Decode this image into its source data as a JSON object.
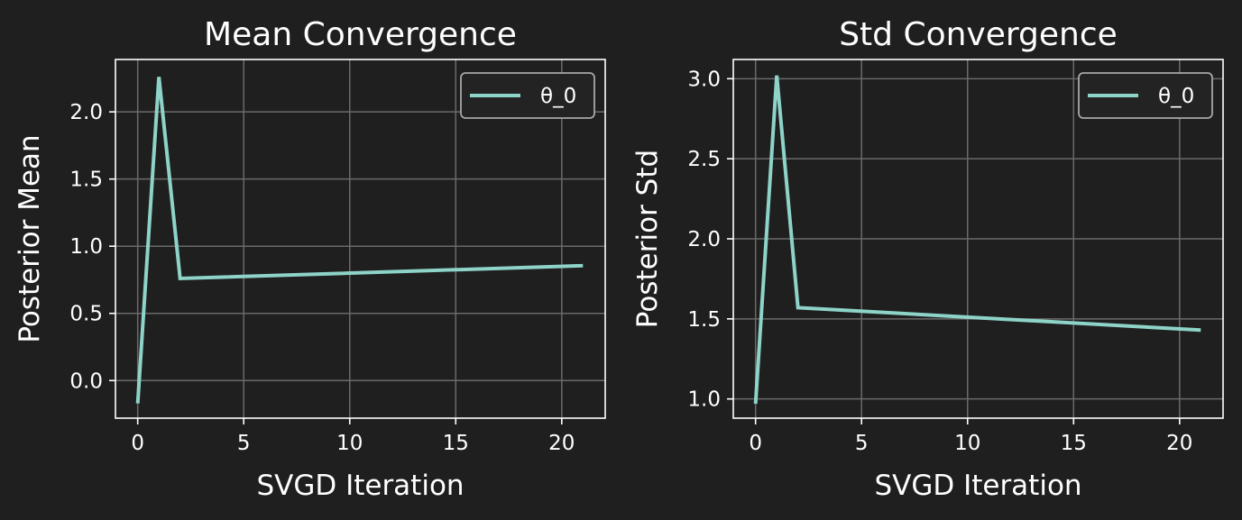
{
  "figure": {
    "background": "#1f1f1f",
    "axes_color": "#ffffff",
    "grid_color": "#6a6a6a",
    "line_color": "#8dd3c7"
  },
  "chart_data": [
    {
      "type": "line",
      "title": "Mean Convergence",
      "xlabel": "SVGD Iteration",
      "ylabel": "Posterior Mean",
      "xlim": [
        -1.05,
        22.05
      ],
      "ylim": [
        -0.28,
        2.39
      ],
      "xticks": [
        0,
        5,
        10,
        15,
        20
      ],
      "xtick_labels": [
        "0",
        "5",
        "10",
        "15",
        "20"
      ],
      "yticks": [
        0.0,
        0.5,
        1.0,
        1.5,
        2.0
      ],
      "ytick_labels": [
        "0.0",
        "0.5",
        "1.0",
        "1.5",
        "2.0"
      ],
      "grid": true,
      "legend": "top-right",
      "series": [
        {
          "name": "θ_0",
          "color": "#8dd3c7",
          "x": [
            0,
            1,
            2,
            21
          ],
          "y": [
            -0.17,
            2.26,
            0.76,
            0.855
          ]
        }
      ]
    },
    {
      "type": "line",
      "title": "Std Convergence",
      "xlabel": "SVGD Iteration",
      "ylabel": "Posterior Std",
      "xlim": [
        -1.05,
        22.05
      ],
      "ylim": [
        0.88,
        3.12
      ],
      "xticks": [
        0,
        5,
        10,
        15,
        20
      ],
      "xtick_labels": [
        "0",
        "5",
        "10",
        "15",
        "20"
      ],
      "yticks": [
        1.0,
        1.5,
        2.0,
        2.5,
        3.0
      ],
      "ytick_labels": [
        "1.0",
        "1.5",
        "2.0",
        "2.5",
        "3.0"
      ],
      "grid": true,
      "legend": "top-right",
      "series": [
        {
          "name": "θ_0",
          "color": "#8dd3c7",
          "x": [
            0,
            1,
            2,
            21
          ],
          "y": [
            0.97,
            3.02,
            1.57,
            1.43
          ]
        }
      ]
    }
  ]
}
